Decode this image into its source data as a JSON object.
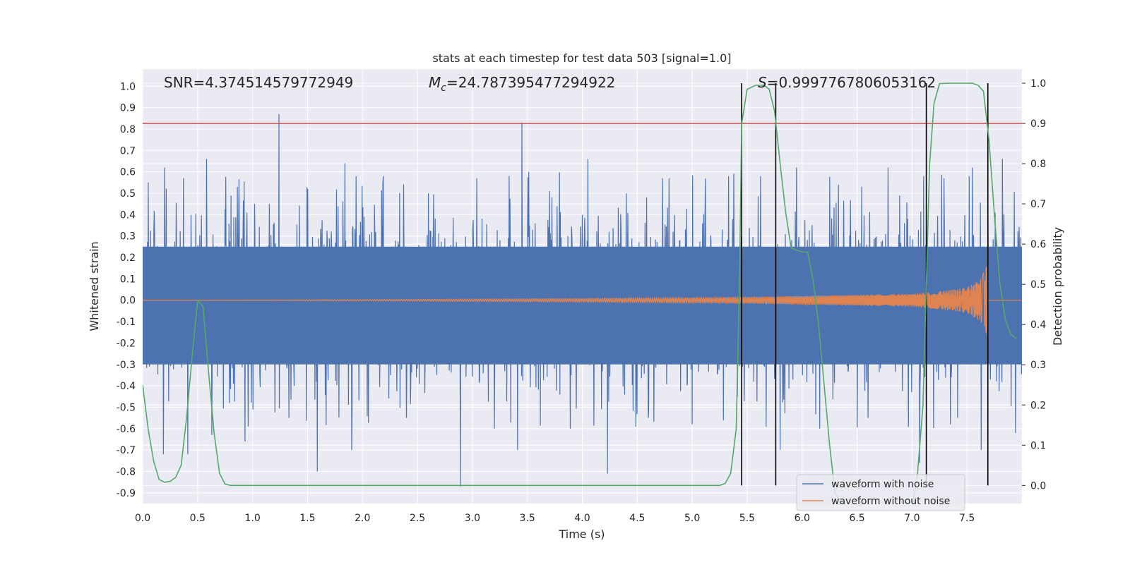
{
  "chart_data": {
    "type": "line",
    "title": "stats at each timestep for test data 503 [signal=1.0]",
    "xlabel": "Time (s)",
    "ylabel_left": "Whitened strain",
    "ylabel_right": "Detection probability",
    "xlim": [
      0.0,
      8.0
    ],
    "ylim_left": [
      -0.95,
      1.08
    ],
    "ylim_right": [
      -0.045,
      1.035
    ],
    "x_ticks": [
      "0.0",
      "0.5",
      "1.0",
      "1.5",
      "2.0",
      "2.5",
      "3.0",
      "3.5",
      "4.0",
      "4.5",
      "5.0",
      "5.5",
      "6.0",
      "6.5",
      "7.0",
      "7.5"
    ],
    "y_left_ticks": [
      "1.0",
      "0.9",
      "0.8",
      "0.7",
      "0.6",
      "0.5",
      "0.4",
      "0.3",
      "0.2",
      "0.1",
      "0.0",
      "-0.1",
      "-0.2",
      "-0.3",
      "-0.4",
      "-0.5",
      "-0.6",
      "-0.7",
      "-0.8",
      "-0.9"
    ],
    "y_right_ticks": [
      "1.0",
      "0.9",
      "0.8",
      "0.7",
      "0.6",
      "0.5",
      "0.4",
      "0.3",
      "0.2",
      "0.1",
      "0.0"
    ],
    "grid": true,
    "legend_position": "lower-right",
    "annotations": {
      "snr": "SNR=4.374514579772949",
      "mc_symbol": "M",
      "mc_sub": "c",
      "mc_value": "=24.787395477294922",
      "s_symbol": "S",
      "s_value": "=0.9997767806053162"
    },
    "threshold": {
      "axis": "right",
      "value": 0.9,
      "color": "#c44e52"
    },
    "event_lines": {
      "x": [
        5.45,
        5.76,
        7.13,
        7.69
      ],
      "ymin": 0.0,
      "ymax": 1.0,
      "axis": "right",
      "color": "#000000"
    },
    "series": [
      {
        "name": "waveform with noise",
        "axis": "left",
        "color": "#4c72b0",
        "note_shape": "dense noise band",
        "core_envelope": [
          0.25,
          -0.3
        ],
        "spike_peaks": [
          {
            "x": 0.05,
            "y": 0.55
          },
          {
            "x": 0.06,
            "y": -0.31
          },
          {
            "x": 0.2,
            "y": 0.62
          },
          {
            "x": 0.19,
            "y": -0.72
          },
          {
            "x": 0.37,
            "y": 0.57
          },
          {
            "x": 0.41,
            "y": -0.72
          },
          {
            "x": 0.58,
            "y": 0.66
          },
          {
            "x": 0.63,
            "y": -0.63
          },
          {
            "x": 0.86,
            "y": 0.53
          },
          {
            "x": 0.93,
            "y": -0.66
          },
          {
            "x": 1.24,
            "y": 0.87
          },
          {
            "x": 1.33,
            "y": -0.55
          },
          {
            "x": 1.5,
            "y": 0.52
          },
          {
            "x": 1.59,
            "y": -0.8
          },
          {
            "x": 1.84,
            "y": 0.64
          },
          {
            "x": 1.9,
            "y": -0.7
          },
          {
            "x": 2.19,
            "y": 0.58
          },
          {
            "x": 2.4,
            "y": -0.55
          },
          {
            "x": 2.6,
            "y": 0.5
          },
          {
            "x": 2.89,
            "y": -0.87
          },
          {
            "x": 3.04,
            "y": 0.57
          },
          {
            "x": 3.2,
            "y": -0.6
          },
          {
            "x": 3.45,
            "y": 0.83
          },
          {
            "x": 3.41,
            "y": -0.7
          },
          {
            "x": 3.7,
            "y": 0.51
          },
          {
            "x": 3.89,
            "y": -0.6
          },
          {
            "x": 4.05,
            "y": 0.66
          },
          {
            "x": 4.23,
            "y": -0.81
          },
          {
            "x": 4.4,
            "y": 0.5
          },
          {
            "x": 4.6,
            "y": -0.55
          },
          {
            "x": 4.73,
            "y": 0.57
          },
          {
            "x": 5.0,
            "y": -0.58
          },
          {
            "x": 5.33,
            "y": 0.58
          },
          {
            "x": 5.41,
            "y": -0.45
          },
          {
            "x": 5.62,
            "y": 0.58
          },
          {
            "x": 5.8,
            "y": -0.7
          },
          {
            "x": 5.95,
            "y": 0.62
          },
          {
            "x": 6.16,
            "y": -0.6
          },
          {
            "x": 6.33,
            "y": 0.54
          },
          {
            "x": 6.6,
            "y": -0.55
          },
          {
            "x": 6.78,
            "y": 0.62
          },
          {
            "x": 7.07,
            "y": -0.76
          },
          {
            "x": 7.29,
            "y": 0.57
          },
          {
            "x": 7.35,
            "y": -0.58
          },
          {
            "x": 7.55,
            "y": 0.62
          },
          {
            "x": 7.63,
            "y": -0.7
          },
          {
            "x": 7.82,
            "y": 0.66
          },
          {
            "x": 7.94,
            "y": -0.62
          }
        ]
      },
      {
        "name": "waveform without noise",
        "axis": "left",
        "color": "#dd8452",
        "note_shape": "chirp: amplitude grows toward merger near x=7.69, then zero",
        "envelope_points": [
          [
            0.0,
            0.0
          ],
          [
            2.0,
            0.003
          ],
          [
            4.0,
            0.008
          ],
          [
            5.0,
            0.012
          ],
          [
            5.5,
            0.015
          ],
          [
            6.0,
            0.02
          ],
          [
            6.5,
            0.025
          ],
          [
            7.0,
            0.03
          ],
          [
            7.3,
            0.045
          ],
          [
            7.5,
            0.06
          ],
          [
            7.62,
            0.1
          ],
          [
            7.69,
            0.17
          ],
          [
            7.7,
            0.0
          ],
          [
            8.0,
            0.0
          ]
        ]
      },
      {
        "name": "Detection probability",
        "axis": "right",
        "color": "#55a868",
        "points": [
          [
            0.0,
            0.25
          ],
          [
            0.05,
            0.14
          ],
          [
            0.1,
            0.06
          ],
          [
            0.15,
            0.015
          ],
          [
            0.2,
            0.008
          ],
          [
            0.25,
            0.01
          ],
          [
            0.3,
            0.02
          ],
          [
            0.35,
            0.05
          ],
          [
            0.4,
            0.17
          ],
          [
            0.45,
            0.32
          ],
          [
            0.5,
            0.46
          ],
          [
            0.55,
            0.445
          ],
          [
            0.6,
            0.28
          ],
          [
            0.65,
            0.13
          ],
          [
            0.7,
            0.03
          ],
          [
            0.75,
            0.003
          ],
          [
            0.8,
            0.0
          ],
          [
            1.0,
            0.0
          ],
          [
            2.0,
            0.0
          ],
          [
            3.0,
            0.0
          ],
          [
            4.0,
            0.0
          ],
          [
            5.0,
            0.0
          ],
          [
            5.25,
            0.0
          ],
          [
            5.3,
            0.005
          ],
          [
            5.35,
            0.03
          ],
          [
            5.4,
            0.14
          ],
          [
            5.43,
            0.5
          ],
          [
            5.45,
            0.9
          ],
          [
            5.5,
            0.985
          ],
          [
            5.58,
            0.995
          ],
          [
            5.65,
            0.995
          ],
          [
            5.7,
            0.985
          ],
          [
            5.75,
            0.93
          ],
          [
            5.8,
            0.8
          ],
          [
            5.85,
            0.68
          ],
          [
            5.9,
            0.59
          ],
          [
            5.95,
            0.585
          ],
          [
            6.0,
            0.58
          ],
          [
            6.05,
            0.58
          ],
          [
            6.1,
            0.51
          ],
          [
            6.15,
            0.4
          ],
          [
            6.2,
            0.25
          ],
          [
            6.25,
            0.1
          ],
          [
            6.3,
            -0.02
          ],
          [
            6.5,
            -0.09
          ],
          [
            7.0,
            -0.06
          ],
          [
            7.05,
            0.03
          ],
          [
            7.1,
            0.2
          ],
          [
            7.13,
            0.5
          ],
          [
            7.16,
            0.8
          ],
          [
            7.2,
            0.95
          ],
          [
            7.25,
            0.999
          ],
          [
            7.35,
            1.0
          ],
          [
            7.55,
            1.0
          ],
          [
            7.6,
            0.995
          ],
          [
            7.65,
            0.98
          ],
          [
            7.7,
            0.86
          ],
          [
            7.75,
            0.67
          ],
          [
            7.8,
            0.5
          ],
          [
            7.85,
            0.41
          ],
          [
            7.9,
            0.375
          ],
          [
            7.95,
            0.365
          ]
        ]
      }
    ]
  }
}
